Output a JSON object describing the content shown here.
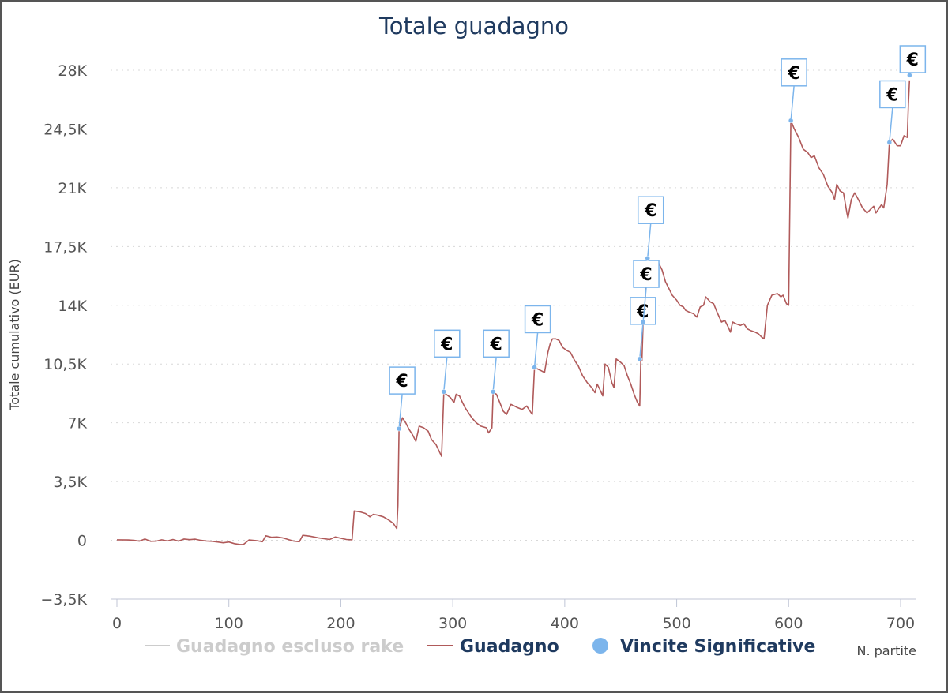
{
  "chart_data": {
    "type": "line",
    "title": "Totale guadagno",
    "xlabel": "N. partite",
    "ylabel": "Totale cumulativo (EUR)",
    "xlim": [
      -5,
      715
    ],
    "ylim": [
      -3500,
      28000
    ],
    "x_ticks": [
      0,
      100,
      200,
      300,
      400,
      500,
      600,
      700
    ],
    "x_tick_labels": [
      "0",
      "100",
      "200",
      "300",
      "400",
      "500",
      "600",
      "700"
    ],
    "y_ticks": [
      -3500,
      0,
      3500,
      7000,
      10500,
      14000,
      17500,
      21000,
      24500,
      28000
    ],
    "y_tick_labels": [
      "−3,5K",
      "0",
      "3,5K",
      "7K",
      "10,5K",
      "14K",
      "17,5K",
      "21K",
      "24,5K",
      "28K"
    ],
    "grid": true,
    "legend_position": "bottom",
    "series": [
      {
        "name": "Guadagno escluso rake",
        "color": "#cccccc",
        "visible": false,
        "points": []
      },
      {
        "name": "Guadagno",
        "color": "#b05a5a",
        "visible": true,
        "points": [
          [
            0,
            30
          ],
          [
            10,
            20
          ],
          [
            15,
            0
          ],
          [
            20,
            -50
          ],
          [
            25,
            80
          ],
          [
            30,
            -60
          ],
          [
            35,
            -50
          ],
          [
            40,
            30
          ],
          [
            45,
            -40
          ],
          [
            50,
            50
          ],
          [
            55,
            -50
          ],
          [
            60,
            80
          ],
          [
            65,
            40
          ],
          [
            70,
            70
          ],
          [
            75,
            0
          ],
          [
            80,
            -40
          ],
          [
            85,
            -60
          ],
          [
            90,
            -100
          ],
          [
            95,
            -150
          ],
          [
            100,
            -100
          ],
          [
            105,
            -200
          ],
          [
            110,
            -250
          ],
          [
            113,
            -250
          ],
          [
            118,
            20
          ],
          [
            125,
            -20
          ],
          [
            130,
            -80
          ],
          [
            133,
            270
          ],
          [
            138,
            180
          ],
          [
            143,
            200
          ],
          [
            148,
            150
          ],
          [
            153,
            50
          ],
          [
            158,
            -50
          ],
          [
            163,
            -80
          ],
          [
            166,
            300
          ],
          [
            172,
            250
          ],
          [
            180,
            150
          ],
          [
            190,
            50
          ],
          [
            195,
            200
          ],
          [
            205,
            50
          ],
          [
            210,
            30
          ],
          [
            212,
            1750
          ],
          [
            217,
            1700
          ],
          [
            222,
            1600
          ],
          [
            226,
            1400
          ],
          [
            229,
            1550
          ],
          [
            233,
            1500
          ],
          [
            238,
            1400
          ],
          [
            243,
            1200
          ],
          [
            247,
            1000
          ],
          [
            250,
            700
          ],
          [
            251,
            2100
          ],
          [
            252,
            6600
          ],
          [
            255,
            7300
          ],
          [
            258,
            7000
          ],
          [
            261,
            6600
          ],
          [
            264,
            6300
          ],
          [
            267,
            5900
          ],
          [
            270,
            6800
          ],
          [
            274,
            6700
          ],
          [
            278,
            6500
          ],
          [
            281,
            6000
          ],
          [
            285,
            5700
          ],
          [
            290,
            5000
          ],
          [
            292,
            8800
          ],
          [
            296,
            8600
          ],
          [
            298,
            8500
          ],
          [
            301,
            8200
          ],
          [
            303,
            8700
          ],
          [
            306,
            8600
          ],
          [
            308,
            8300
          ],
          [
            311,
            7900
          ],
          [
            313,
            7700
          ],
          [
            317,
            7300
          ],
          [
            321,
            7000
          ],
          [
            325,
            6800
          ],
          [
            330,
            6700
          ],
          [
            332,
            6400
          ],
          [
            335,
            6700
          ],
          [
            336,
            8800
          ],
          [
            339,
            8700
          ],
          [
            342,
            8200
          ],
          [
            345,
            7700
          ],
          [
            348,
            7500
          ],
          [
            352,
            8100
          ],
          [
            355,
            8000
          ],
          [
            358,
            7900
          ],
          [
            362,
            7800
          ],
          [
            366,
            8000
          ],
          [
            369,
            7700
          ],
          [
            371,
            7500
          ],
          [
            373,
            10300
          ],
          [
            376,
            10200
          ],
          [
            379,
            10100
          ],
          [
            382,
            10000
          ],
          [
            385,
            11200
          ],
          [
            387,
            11700
          ],
          [
            389,
            12000
          ],
          [
            392,
            12000
          ],
          [
            395,
            11900
          ],
          [
            398,
            11500
          ],
          [
            402,
            11300
          ],
          [
            405,
            11200
          ],
          [
            409,
            10700
          ],
          [
            412,
            10400
          ],
          [
            416,
            9800
          ],
          [
            420,
            9400
          ],
          [
            424,
            9100
          ],
          [
            427,
            8800
          ],
          [
            429,
            9300
          ],
          [
            432,
            8900
          ],
          [
            434,
            8600
          ],
          [
            436,
            10500
          ],
          [
            439,
            10300
          ],
          [
            442,
            9400
          ],
          [
            444,
            9100
          ],
          [
            446,
            10800
          ],
          [
            450,
            10600
          ],
          [
            453,
            10400
          ],
          [
            456,
            9800
          ],
          [
            459,
            9300
          ],
          [
            462,
            8700
          ],
          [
            465,
            8200
          ],
          [
            467,
            8000
          ],
          [
            468,
            10800
          ],
          [
            469,
            10700
          ],
          [
            470,
            13000
          ],
          [
            472,
            14500
          ],
          [
            474,
            16800
          ],
          [
            477,
            16300
          ],
          [
            479,
            16000
          ],
          [
            481,
            16600
          ],
          [
            484,
            16500
          ],
          [
            487,
            16100
          ],
          [
            490,
            15400
          ],
          [
            493,
            15000
          ],
          [
            496,
            14600
          ],
          [
            500,
            14300
          ],
          [
            503,
            14000
          ],
          [
            506,
            13900
          ],
          [
            508,
            13700
          ],
          [
            511,
            13600
          ],
          [
            515,
            13500
          ],
          [
            518,
            13300
          ],
          [
            521,
            13900
          ],
          [
            524,
            14000
          ],
          [
            526,
            14500
          ],
          [
            530,
            14200
          ],
          [
            533,
            14100
          ],
          [
            536,
            13600
          ],
          [
            540,
            13000
          ],
          [
            543,
            13100
          ],
          [
            546,
            12700
          ],
          [
            548,
            12400
          ],
          [
            550,
            13000
          ],
          [
            553,
            12900
          ],
          [
            557,
            12800
          ],
          [
            560,
            12900
          ],
          [
            563,
            12600
          ],
          [
            566,
            12500
          ],
          [
            570,
            12400
          ],
          [
            573,
            12300
          ],
          [
            576,
            12100
          ],
          [
            578,
            12000
          ],
          [
            581,
            14000
          ],
          [
            585,
            14600
          ],
          [
            590,
            14700
          ],
          [
            593,
            14500
          ],
          [
            595,
            14600
          ],
          [
            598,
            14100
          ],
          [
            600,
            14000
          ],
          [
            602,
            25000
          ],
          [
            605,
            24500
          ],
          [
            609,
            24000
          ],
          [
            613,
            23300
          ],
          [
            617,
            23100
          ],
          [
            620,
            22800
          ],
          [
            623,
            22900
          ],
          [
            627,
            22200
          ],
          [
            631,
            21800
          ],
          [
            635,
            21100
          ],
          [
            639,
            20700
          ],
          [
            641,
            20300
          ],
          [
            643,
            21200
          ],
          [
            646,
            20800
          ],
          [
            649,
            20700
          ],
          [
            652,
            19500
          ],
          [
            653,
            19200
          ],
          [
            656,
            20300
          ],
          [
            659,
            20700
          ],
          [
            663,
            20200
          ],
          [
            666,
            19800
          ],
          [
            670,
            19500
          ],
          [
            673,
            19700
          ],
          [
            676,
            19900
          ],
          [
            678,
            19500
          ],
          [
            680,
            19700
          ],
          [
            683,
            20000
          ],
          [
            685,
            19800
          ],
          [
            688,
            21200
          ],
          [
            690,
            23700
          ],
          [
            693,
            23900
          ],
          [
            697,
            23500
          ],
          [
            700,
            23500
          ],
          [
            703,
            24100
          ],
          [
            706,
            24000
          ],
          [
            707,
            26000
          ],
          [
            708,
            27400
          ]
        ]
      }
    ],
    "markers": {
      "name": "Vincite Significative",
      "color": "#7cb5ec",
      "symbol": "€",
      "points": [
        [
          252,
          6650
        ],
        [
          292,
          8850
        ],
        [
          336,
          8850
        ],
        [
          373,
          10300
        ],
        [
          467,
          10800
        ],
        [
          470,
          13000
        ],
        [
          474,
          16800
        ],
        [
          602,
          25000
        ],
        [
          690,
          23700
        ],
        [
          708,
          27700
        ]
      ]
    }
  }
}
